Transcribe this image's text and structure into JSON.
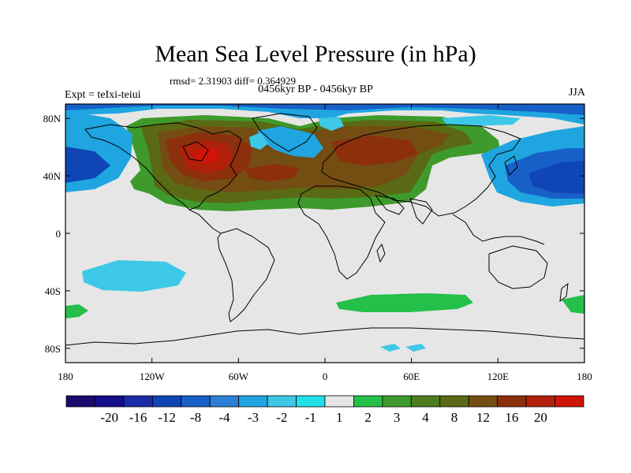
{
  "header": {
    "title": "Mean Sea Level Pressure (in hPa)",
    "stats": "rmsd= 2.31903 diff= 0.364929",
    "subtitle": "0456kyr BP - 0456kyr BP",
    "left_label": "Expt = teIxi-teiui",
    "right_label": "JJA"
  },
  "chart_data": {
    "type": "heatmap",
    "title": "Mean Sea Level Pressure (in hPa)",
    "projection": "cylindrical equidistant",
    "x_range": [
      -180,
      180
    ],
    "y_range": [
      -90,
      90
    ],
    "lon_ticks": [
      {
        "value": -180,
        "label": "180"
      },
      {
        "value": -120,
        "label": "120W"
      },
      {
        "value": -60,
        "label": "60W"
      },
      {
        "value": 0,
        "label": "0"
      },
      {
        "value": 60,
        "label": "60E"
      },
      {
        "value": 120,
        "label": "120E"
      },
      {
        "value": 180,
        "label": "180"
      }
    ],
    "lat_ticks": [
      {
        "value": 80,
        "label": "80N"
      },
      {
        "value": 40,
        "label": "40N"
      },
      {
        "value": 0,
        "label": "0"
      },
      {
        "value": -40,
        "label": "40S"
      },
      {
        "value": -80,
        "label": "80S"
      }
    ],
    "colorbar": {
      "colors": [
        "#1a0a6e",
        "#150d8a",
        "#1b2aa8",
        "#0f45b4",
        "#1760c8",
        "#2b80d6",
        "#1fa5e0",
        "#3ec8e8",
        "#22e0e8",
        "#e6e6e6",
        "#24c04a",
        "#3f9a2c",
        "#4e7d1e",
        "#5a6a14",
        "#744d12",
        "#8c2f0c",
        "#b0200a",
        "#d11408"
      ],
      "labels": [
        "-20",
        "-16",
        "-12",
        "-8",
        "-4",
        "-3",
        "-2",
        "-1",
        "1",
        "2",
        "3",
        "4",
        "8",
        "12",
        "16",
        "20"
      ]
    },
    "background_color": "#e6e6e6"
  }
}
